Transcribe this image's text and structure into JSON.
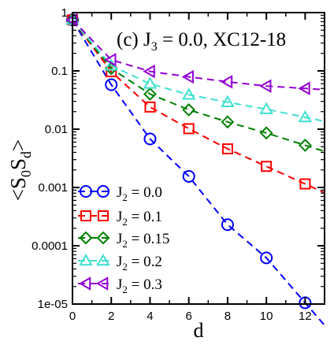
{
  "chart_data": {
    "type": "line",
    "title": "",
    "annotation_parts": [
      "(c) J",
      "3",
      " = 0.0, XC12-18"
    ],
    "xlabel": "d",
    "ylabel_parts": [
      "<S",
      "0",
      "S",
      "d",
      ">"
    ],
    "xlim": [
      0,
      13
    ],
    "ylim": [
      1e-05,
      1
    ],
    "yscale": "log",
    "xticks": [
      0,
      2,
      4,
      6,
      8,
      10,
      12
    ],
    "xtick_labels": [
      "0",
      "2",
      "4",
      "6",
      "8",
      "10",
      "12"
    ],
    "yticks": [
      1,
      0.1,
      0.01,
      0.001,
      0.0001,
      1e-05
    ],
    "ytick_labels": [
      "1",
      "0.1",
      "0.01",
      "0.001",
      "0.0001",
      "1e-05"
    ],
    "grid": false,
    "legend_position": "bottom-left",
    "series": [
      {
        "name_prefix": "J",
        "name_sub": "2",
        "name_value": " = 0.0",
        "marker": "circle",
        "color": "#0000ff",
        "x": [
          0,
          2,
          4,
          6,
          8,
          10,
          12
        ],
        "y": [
          0.75,
          0.058,
          0.0068,
          0.00155,
          0.00023,
          6.2e-05,
          1.05e-05
        ]
      },
      {
        "name_prefix": "J",
        "name_sub": "2",
        "name_value": " = 0.1",
        "marker": "square",
        "color": "#ff0000",
        "x": [
          0,
          2,
          4,
          6,
          8,
          10,
          12
        ],
        "y": [
          0.75,
          0.097,
          0.024,
          0.0102,
          0.0046,
          0.0023,
          0.00115
        ]
      },
      {
        "name_prefix": "J",
        "name_sub": "2",
        "name_value": " = 0.15",
        "marker": "diamond",
        "color": "#008000",
        "x": [
          0,
          2,
          4,
          6,
          8,
          10,
          12
        ],
        "y": [
          0.75,
          0.11,
          0.04,
          0.0215,
          0.0133,
          0.0086,
          0.0053
        ]
      },
      {
        "name_prefix": "J",
        "name_sub": "2",
        "name_value": " = 0.2",
        "marker": "triangle-up",
        "color": "#40e0d0",
        "x": [
          0,
          2,
          4,
          6,
          8,
          10,
          12
        ],
        "y": [
          0.75,
          0.123,
          0.06,
          0.039,
          0.029,
          0.022,
          0.016
        ]
      },
      {
        "name_prefix": "J",
        "name_sub": "2",
        "name_value": " = 0.3",
        "marker": "triangle-left",
        "color": "#9400d3",
        "x": [
          0,
          2,
          4,
          6,
          8,
          10,
          12
        ],
        "y": [
          0.75,
          0.155,
          0.098,
          0.079,
          0.065,
          0.055,
          0.05
        ]
      }
    ]
  }
}
